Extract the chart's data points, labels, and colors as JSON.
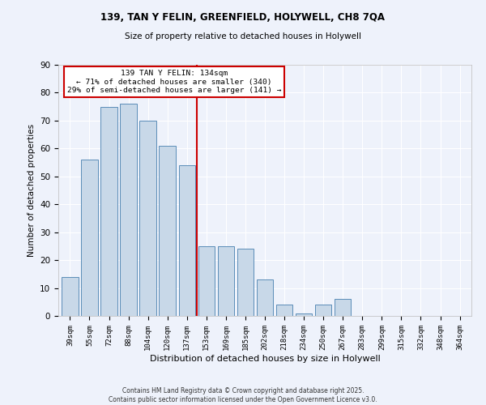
{
  "title1": "139, TAN Y FELIN, GREENFIELD, HOLYWELL, CH8 7QA",
  "title2": "Size of property relative to detached houses in Holywell",
  "xlabel": "Distribution of detached houses by size in Holywell",
  "ylabel": "Number of detached properties",
  "categories": [
    "39sqm",
    "55sqm",
    "72sqm",
    "88sqm",
    "104sqm",
    "120sqm",
    "137sqm",
    "153sqm",
    "169sqm",
    "185sqm",
    "202sqm",
    "218sqm",
    "234sqm",
    "250sqm",
    "267sqm",
    "283sqm",
    "299sqm",
    "315sqm",
    "332sqm",
    "348sqm",
    "364sqm"
  ],
  "values": [
    14,
    56,
    75,
    76,
    70,
    61,
    54,
    25,
    25,
    24,
    13,
    4,
    1,
    4,
    6,
    0,
    0,
    0,
    0,
    0,
    0
  ],
  "bar_color": "#c8d8e8",
  "bar_edge_color": "#5b8db8",
  "vline_x_idx": 6.5,
  "vline_color": "#cc0000",
  "annotation_text": "139 TAN Y FELIN: 134sqm\n← 71% of detached houses are smaller (340)\n29% of semi-detached houses are larger (141) →",
  "annotation_box_color": "#ffffff",
  "annotation_box_edge": "#cc0000",
  "ylim": [
    0,
    90
  ],
  "yticks": [
    0,
    10,
    20,
    30,
    40,
    50,
    60,
    70,
    80,
    90
  ],
  "background_color": "#eef2fb",
  "grid_color": "#ffffff",
  "footer": "Contains HM Land Registry data © Crown copyright and database right 2025.\nContains public sector information licensed under the Open Government Licence v3.0."
}
